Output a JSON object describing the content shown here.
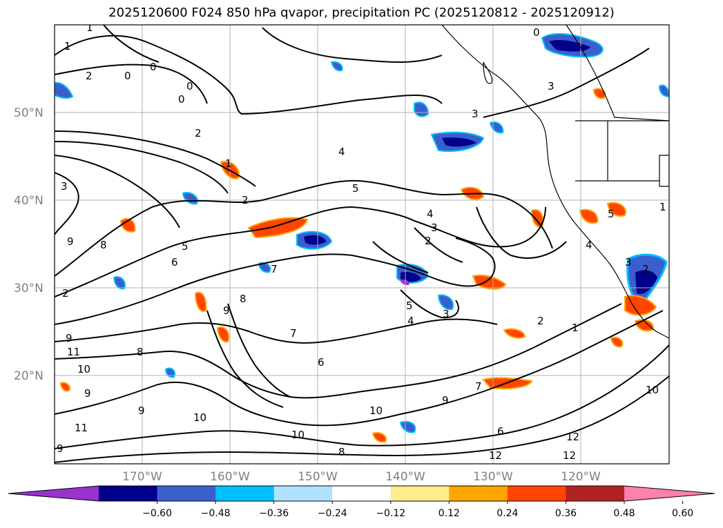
{
  "title": "2025120600 F024 850 hPa qvapor, precipitation PC (2025120812 - 2025120912)",
  "lat_labels": [
    "50°N",
    "40°N",
    "30°N",
    "20°N"
  ],
  "lon_labels": [
    "170°W",
    "160°W",
    "150°W",
    "140°W",
    "130°W",
    "120°W"
  ],
  "colorbar": {
    "colors": [
      "#9a32cd",
      "#00008b",
      "#3a5fcd",
      "#00bfff",
      "#b0e2ff",
      "#ffffff",
      "#ffec8b",
      "#ffa500",
      "#ff4500",
      "#b22222",
      "#ff82ab"
    ],
    "tick_labels": [
      "−0.60",
      "−0.48",
      "−0.36",
      "−0.24",
      "−0.12",
      "0.12",
      "0.24",
      "0.36",
      "0.48",
      "0.60"
    ]
  },
  "contour_labels": [
    "1",
    "0",
    "1",
    "2",
    "0",
    "0",
    "0",
    "0",
    "3",
    "3",
    "2",
    "1",
    "2",
    "4",
    "5",
    "3",
    "9",
    "8",
    "6",
    "5",
    "4",
    "3",
    "2",
    "7",
    "8",
    "9",
    "10",
    "11",
    "9",
    "8",
    "7",
    "6",
    "5",
    "4",
    "3",
    "2",
    "1",
    "2",
    "9",
    "10",
    "9",
    "10",
    "12",
    "12",
    "8",
    "7",
    "6",
    "9",
    "10",
    "5",
    "4",
    "3",
    "2",
    "1",
    "10",
    "12",
    "11",
    "9"
  ]
}
